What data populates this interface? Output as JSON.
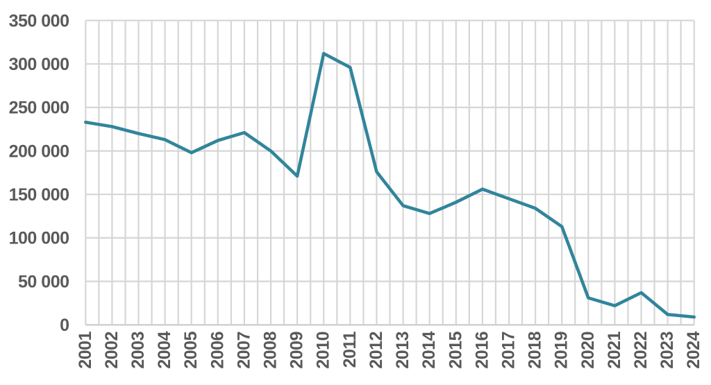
{
  "chart_data": {
    "type": "line",
    "title": "",
    "xlabel": "",
    "ylabel": "",
    "categories": [
      "2001",
      "2002",
      "2003",
      "2004",
      "2005",
      "2006",
      "2007",
      "2008",
      "2009",
      "2010",
      "2011",
      "2012",
      "2013",
      "2014",
      "2015",
      "2016",
      "2017",
      "2018",
      "2019",
      "2020",
      "2021",
      "2022",
      "2023",
      "2024"
    ],
    "values": [
      233000,
      228000,
      220000,
      213000,
      198000,
      212000,
      221000,
      200000,
      171000,
      312000,
      296000,
      176000,
      137000,
      128000,
      141000,
      156000,
      145000,
      134000,
      113000,
      31000,
      22000,
      37000,
      12000,
      9000
    ],
    "ylim": [
      0,
      350000
    ],
    "ytick_interval": 50000,
    "ytick_labels": [
      "0",
      "50 000",
      "100 000",
      "150 000",
      "200 000",
      "250 000",
      "300 000",
      "350 000"
    ],
    "legend": "none",
    "grid": {
      "horizontal": "major gridlines every 50 000",
      "vertical": "gridlines every half category (two per year)"
    },
    "x_label_style": "rotated 90deg, reads bottom-to-top",
    "number_format": "space thousands separator"
  },
  "colors": {
    "line": "#31859B",
    "gridline": "#D6D6D6",
    "axis_line": "#D2D2D2",
    "axis_labels": "#595959",
    "background": "#FFFFFF"
  }
}
